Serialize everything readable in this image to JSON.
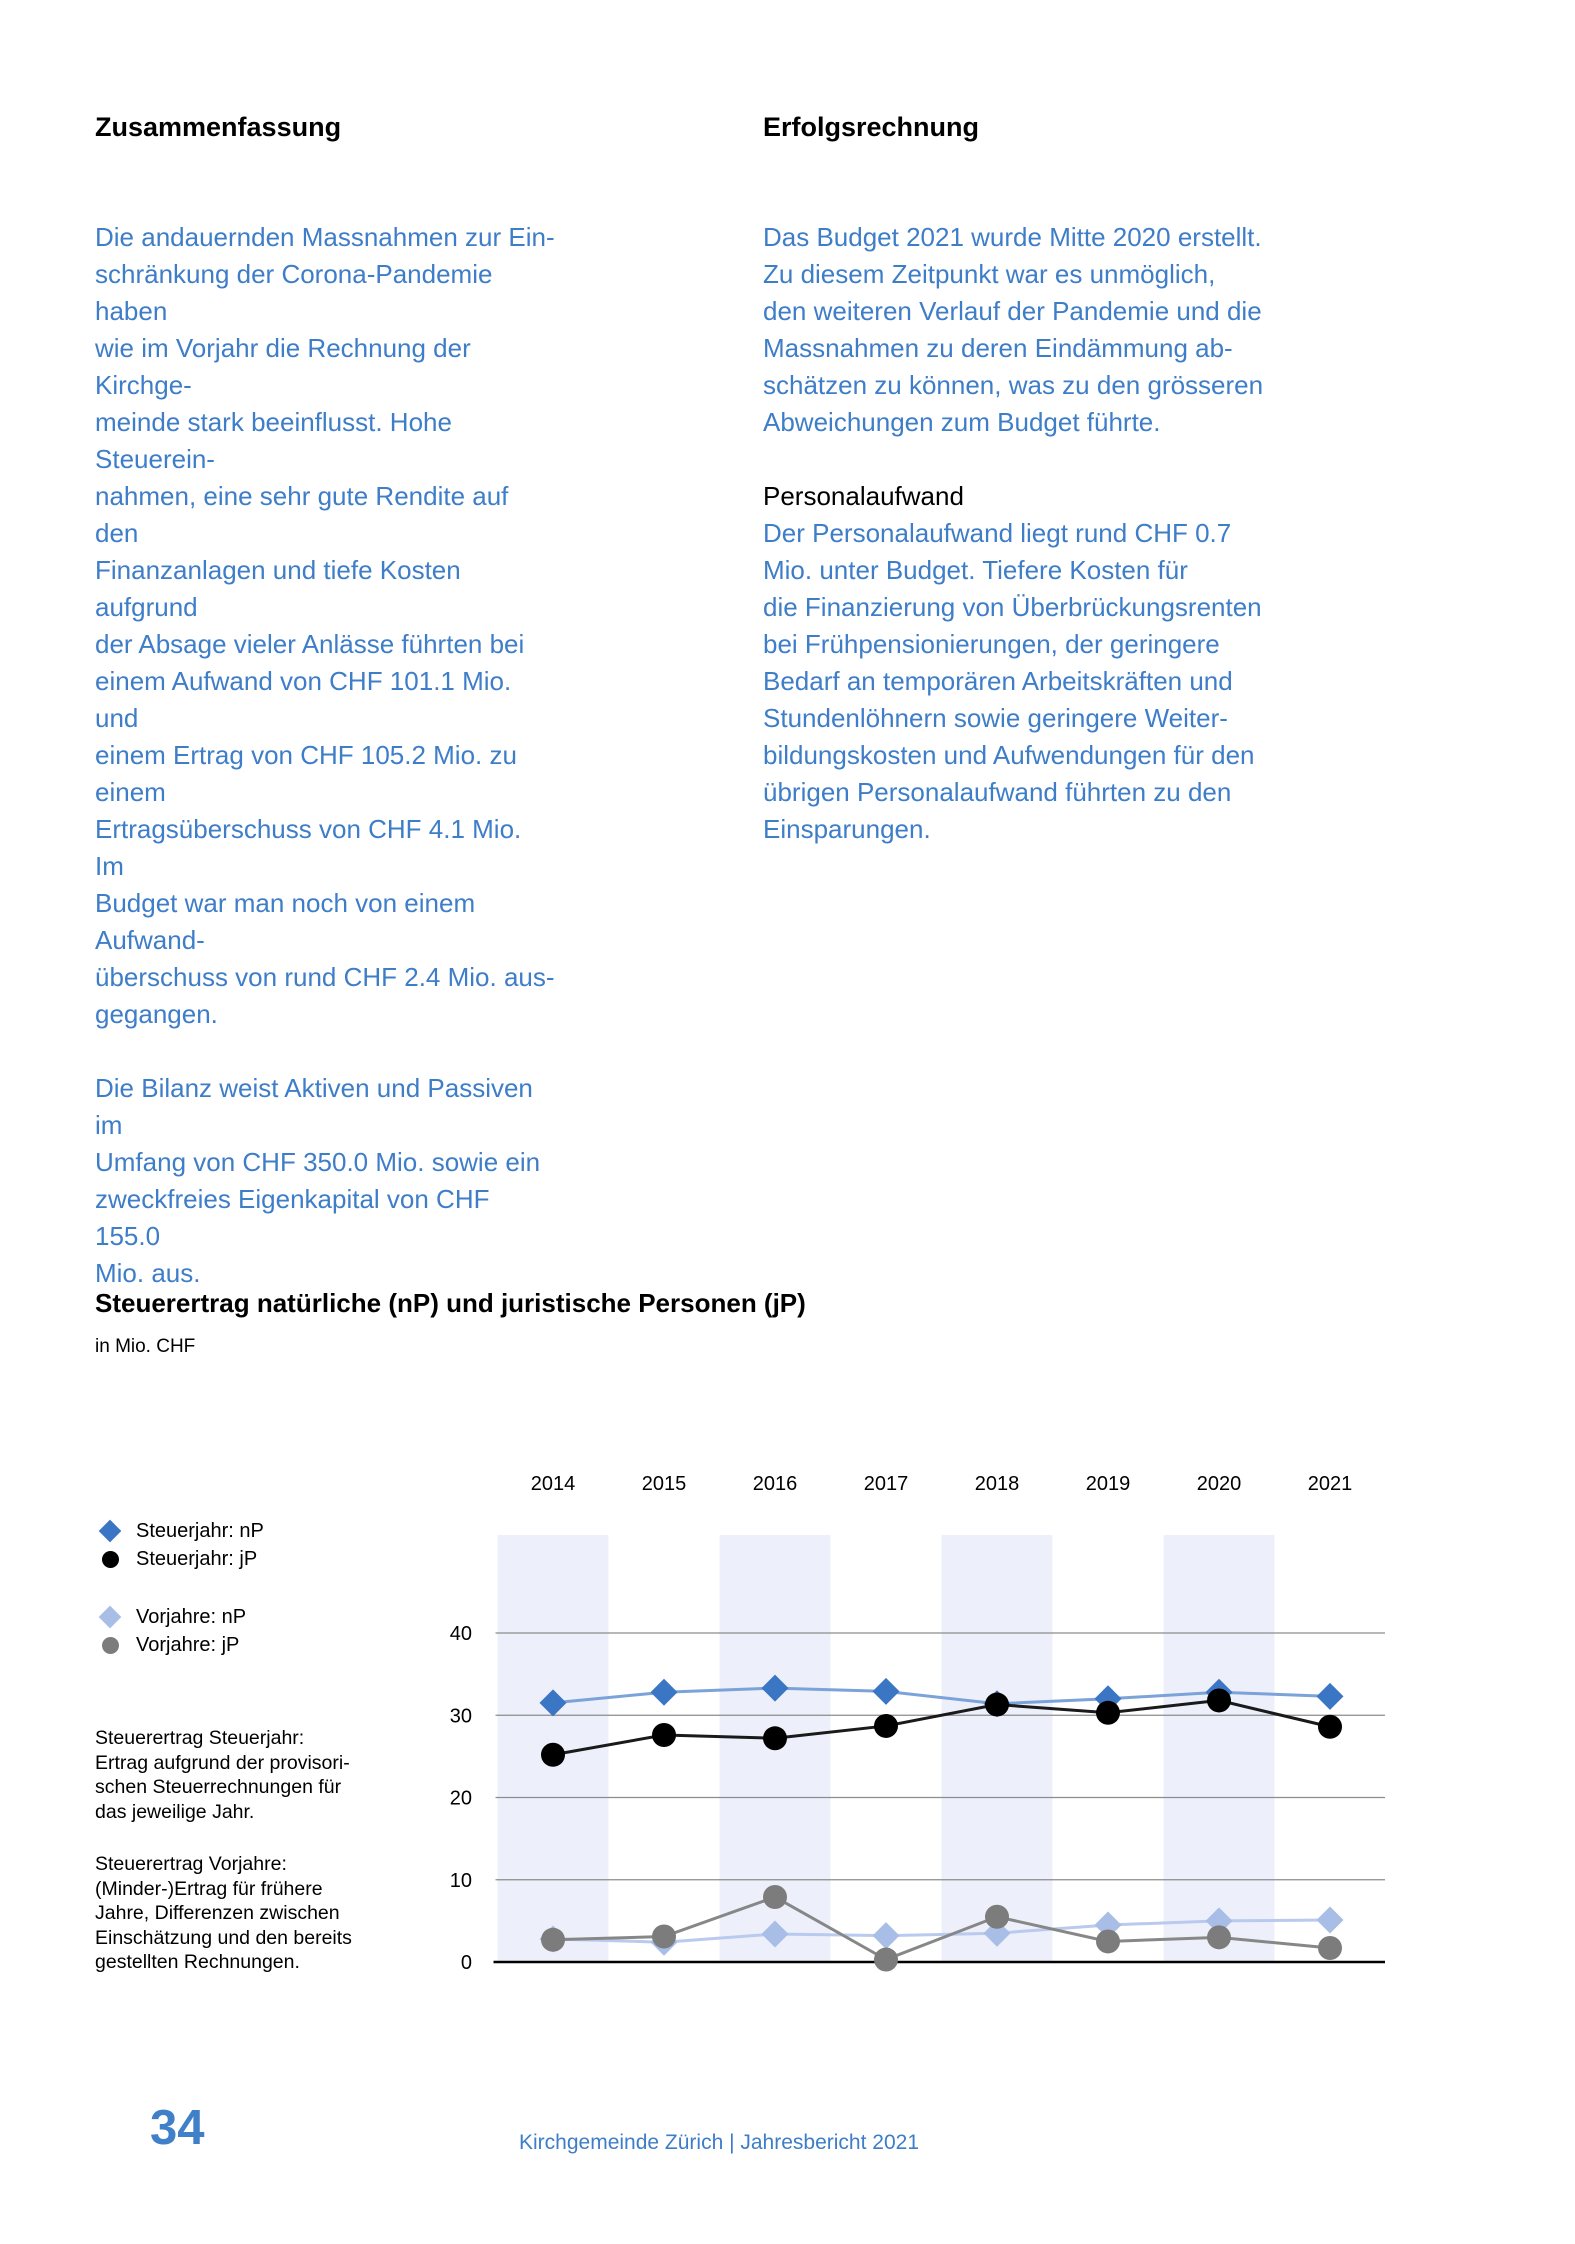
{
  "sections": {
    "left": {
      "heading": "Zusammenfassung",
      "para1_lines": [
        "Die andauernden Massnahmen zur Ein-",
        "schränkung der Corona-Pandemie haben",
        "wie im Vorjahr die Rechnung der Kirchge-",
        "meinde stark beeinflusst. Hohe Steuerein-",
        "nahmen, eine sehr gute Rendite auf den",
        "Finanzanlagen und tiefe Kosten aufgrund",
        "der Absage vieler Anlässe führten bei",
        "einem Aufwand von CHF 101.1 Mio. und",
        "einem Ertrag von CHF 105.2 Mio. zu einem",
        "Ertragsüberschuss von CHF 4.1 Mio. Im",
        "Budget war man noch von einem Aufwand-",
        "überschuss von rund CHF 2.4 Mio. aus-",
        "gegangen."
      ],
      "para2_lines": [
        "Die Bilanz weist Aktiven und Passiven im",
        "Umfang von CHF 350.0 Mio. sowie ein",
        "zweckfreies Eigenkapital von CHF 155.0",
        "Mio. aus."
      ]
    },
    "right": {
      "heading": "Erfolgsrechnung",
      "para1_lines": [
        "Das Budget 2021 wurde Mitte 2020 erstellt.",
        "Zu diesem Zeitpunkt war es unmöglich,",
        "den weiteren Verlauf der Pandemie und die",
        "Massnahmen zu deren Eindämmung ab-",
        "schätzen zu können, was zu den grösseren",
        "Abweichungen zum Budget führte."
      ],
      "subheading": "Personalaufwand",
      "para2_lines": [
        "Der Personalaufwand liegt rund CHF 0.7",
        "Mio. unter Budget. Tiefere Kosten für",
        "die Finanzierung von Überbrückungsrenten",
        "bei Frühpensionierungen, der geringere",
        "Bedarf an temporären Arbeitskräften und",
        "Stundenlöhnern sowie geringere Weiter-",
        "bildungskosten und Aufwendungen für den",
        "übrigen Personalaufwand führten zu den",
        "Einsparungen."
      ]
    }
  },
  "chart": {
    "title": "Steuerertrag natürliche (nP) und juristische Personen (jP)",
    "subtitle": "in Mio. CHF",
    "note1_lines": [
      "Steuerertrag Steuerjahr:",
      "Ertrag aufgrund der provisori-",
      "schen Steuerrechnungen für",
      "das jeweilige Jahr."
    ],
    "note2_lines": [
      "Steuerertrag Vorjahre:",
      "(Minder-)Ertrag für frühere",
      "Jahre, Differenzen zwischen",
      "Einschätzung und den bereits",
      "gestellten Rechnungen."
    ]
  },
  "chart_data": {
    "type": "line",
    "categories": [
      "2014",
      "2015",
      "2016",
      "2017",
      "2018",
      "2019",
      "2020",
      "2021"
    ],
    "series": [
      {
        "name": "Steuerjahr: nP",
        "marker": "diamond",
        "color": "#3B76C4",
        "line_color": "#7BA2D9",
        "values": [
          31.5,
          32.8,
          33.3,
          32.9,
          31.4,
          32.0,
          32.8,
          32.3
        ]
      },
      {
        "name": "Steuerjahr: jP",
        "marker": "circle",
        "color": "#000000",
        "line_color": "#1A1A1A",
        "values": [
          25.2,
          27.6,
          27.2,
          28.7,
          31.3,
          30.3,
          31.8,
          28.6
        ]
      },
      {
        "name": "Vorjahre: nP",
        "marker": "diamond",
        "color": "#A8BEE7",
        "line_color": "#B9CAEE",
        "values": [
          2.8,
          2.4,
          3.4,
          3.2,
          3.5,
          4.5,
          5.0,
          5.1
        ]
      },
      {
        "name": "Vorjahre: jP",
        "marker": "circle",
        "color": "#7C7C7C",
        "line_color": "#878787",
        "values": [
          2.7,
          3.1,
          7.9,
          0.3,
          5.5,
          2.5,
          3.0,
          1.7
        ]
      }
    ],
    "ylim": [
      0,
      45
    ],
    "yticks": [
      40,
      30,
      20,
      10,
      0
    ],
    "grid": true,
    "banded_categories": [
      "2014",
      "2016",
      "2018",
      "2020"
    ],
    "band_color": "#EDF0FA",
    "gridline_color": "#8C8C8C",
    "axis_color": "#000000",
    "legend_position": "left",
    "xlabel": "",
    "ylabel": ""
  },
  "footer": {
    "page_number": "34",
    "text": "Kirchgemeinde Zürich | Jahresbericht 2021"
  }
}
